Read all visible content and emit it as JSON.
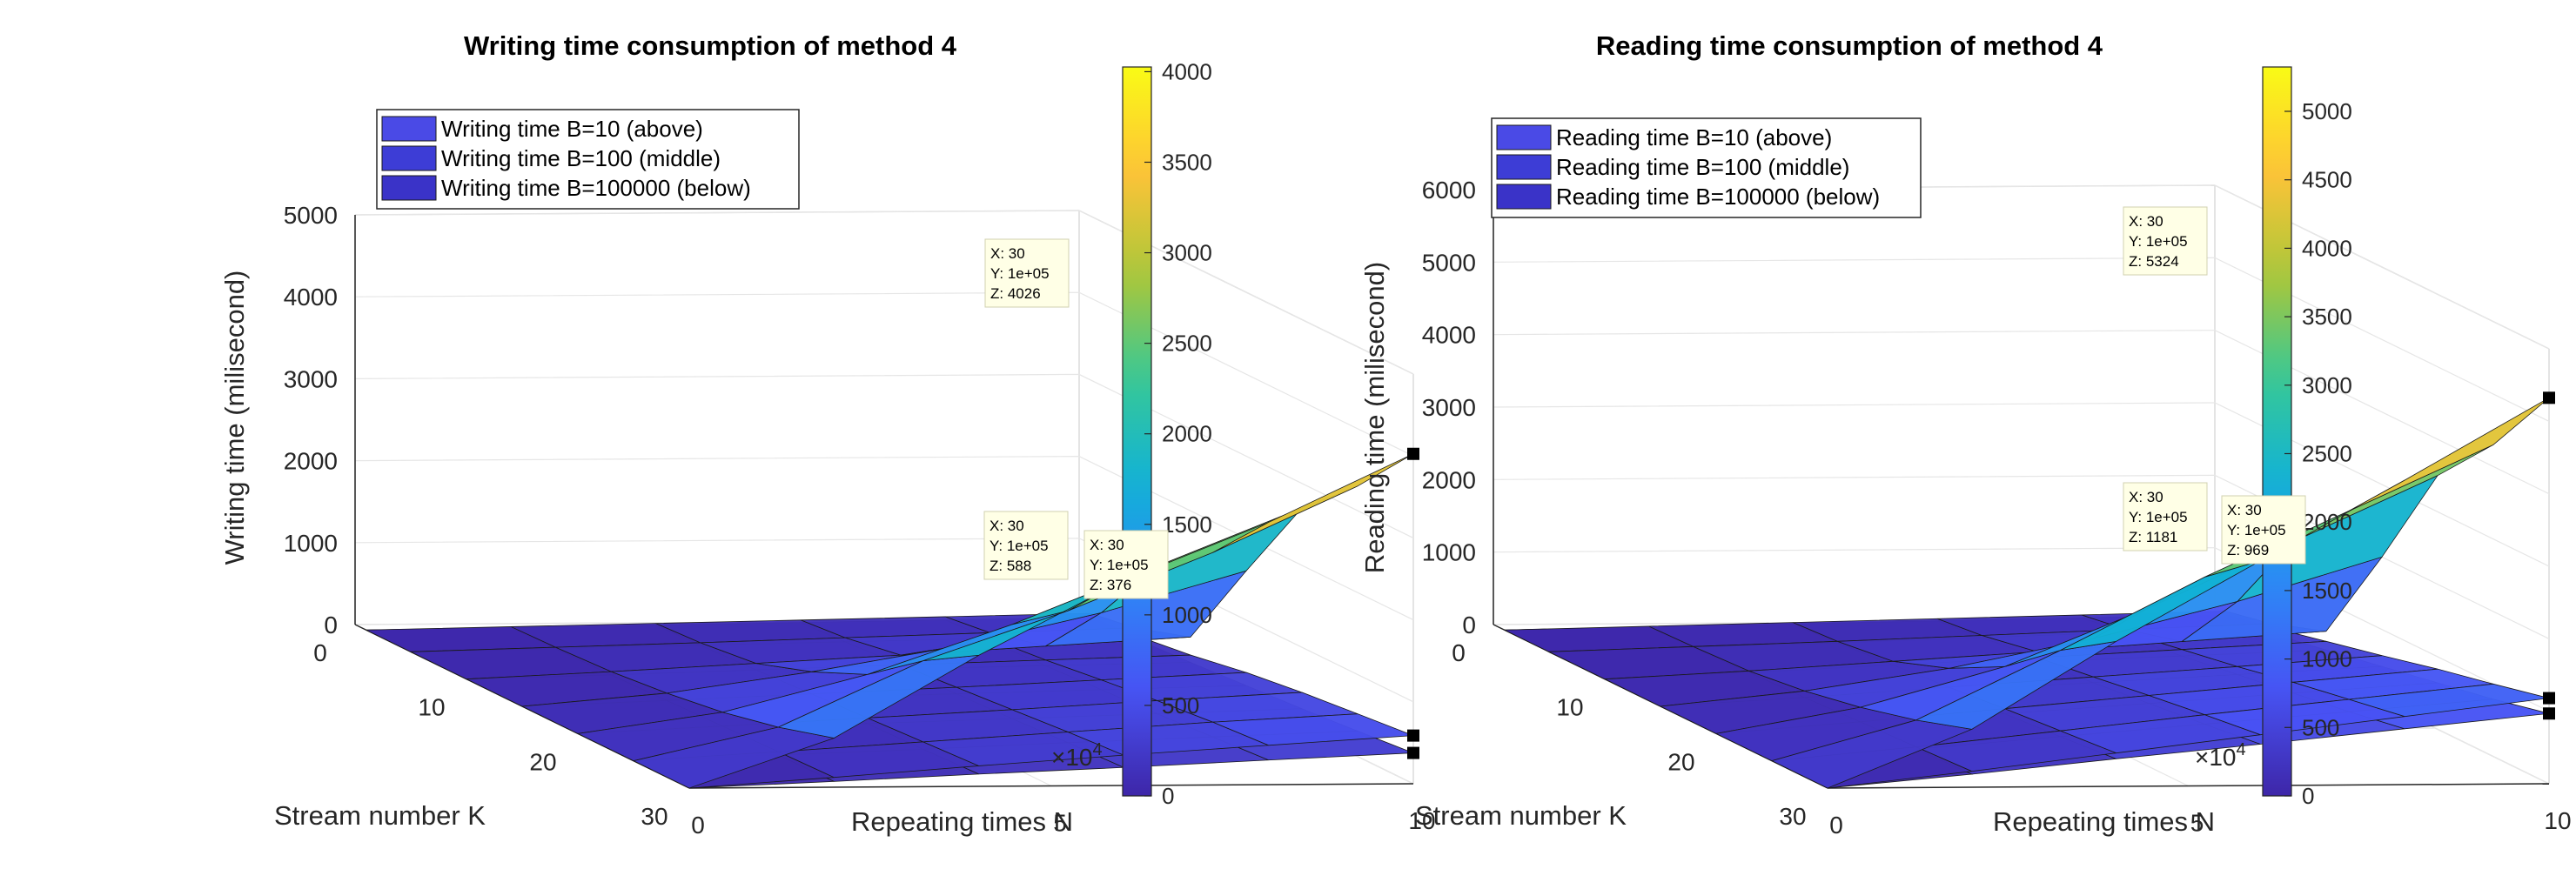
{
  "chart_data": [
    {
      "type": "surface",
      "title": "Writing time consumption of method 4",
      "xlabel": "Repeating times N",
      "ylabel": "Stream number K",
      "zlabel": "Writing time (milisecond)",
      "x_ticks": [
        "0",
        "5",
        "10"
      ],
      "x_exponent": "×10",
      "x_exponent_power": "4",
      "y_ticks": [
        "0",
        "10",
        "20",
        "30"
      ],
      "z_ticks": [
        "0",
        "1000",
        "2000",
        "3000",
        "4000",
        "5000"
      ],
      "zlim": [
        0,
        5000
      ],
      "colorbar_ticks": [
        "0",
        "500",
        "1000",
        "1500",
        "2000",
        "2500",
        "3000",
        "3500",
        "4000"
      ],
      "colorbar_range": [
        0,
        4026
      ],
      "legend": [
        "Writing time B=10 (above)",
        "Writing time B=100 (middle)",
        "Writing time B=100000 (below)"
      ],
      "datatips": [
        {
          "x": "X: 30",
          "y": "Y: 1e+05",
          "z": "Z: 4026",
          "zval": 4026
        },
        {
          "x": "X: 30",
          "y": "Y: 1e+05",
          "z": "Z: 588",
          "zval": 588
        },
        {
          "x": "X: 30",
          "y": "Y: 1e+05",
          "z": "Z: 376",
          "zval": 376
        }
      ],
      "series": [
        {
          "name": "Writing time B=10 (above)",
          "K": [
            1,
            5,
            10,
            15,
            20,
            25,
            30
          ],
          "N": [
            0,
            20000,
            40000,
            60000,
            80000,
            100000
          ],
          "Z": [
            [
              0,
              30,
              60,
              90,
              120,
              150
            ],
            [
              0,
              45,
              90,
              140,
              190,
              240
            ],
            [
              0,
              80,
              170,
              260,
              360,
              460
            ],
            [
              0,
              150,
              400,
              700,
              1100,
              1600
            ],
            [
              0,
              250,
              700,
              1300,
              2000,
              2700
            ],
            [
              0,
              400,
              1200,
              1800,
              2500,
              3300
            ],
            [
              0,
              600,
              1600,
              2500,
              3200,
              4026
            ]
          ]
        },
        {
          "name": "Writing time B=100 (middle)",
          "K": [
            1,
            5,
            10,
            15,
            20,
            25,
            30
          ],
          "N": [
            0,
            20000,
            40000,
            60000,
            80000,
            100000
          ],
          "Z": [
            [
              0,
              20,
              40,
              60,
              80,
              100
            ],
            [
              0,
              30,
              60,
              90,
              120,
              150
            ],
            [
              0,
              40,
              90,
              140,
              190,
              240
            ],
            [
              0,
              60,
              130,
              200,
              280,
              360
            ],
            [
              0,
              80,
              170,
              260,
              360,
              450
            ],
            [
              0,
              100,
              210,
              320,
              430,
              520
            ],
            [
              0,
              120,
              250,
              370,
              480,
              588
            ]
          ]
        },
        {
          "name": "Writing time B=100000 (below)",
          "K": [
            1,
            5,
            10,
            15,
            20,
            25,
            30
          ],
          "N": [
            0,
            20000,
            40000,
            60000,
            80000,
            100000
          ],
          "Z": [
            [
              0,
              15,
              30,
              45,
              60,
              75
            ],
            [
              0,
              20,
              45,
              65,
              90,
              110
            ],
            [
              0,
              30,
              60,
              90,
              120,
              150
            ],
            [
              0,
              40,
              80,
              120,
              160,
              200
            ],
            [
              0,
              50,
              100,
              150,
              200,
              250
            ],
            [
              0,
              60,
              120,
              190,
              250,
              310
            ],
            [
              0,
              70,
              150,
              220,
              300,
              376
            ]
          ]
        }
      ]
    },
    {
      "type": "surface",
      "title": "Reading time consumption of method 4",
      "xlabel": "Repeating times N",
      "ylabel": "Stream number K",
      "zlabel": "Reading time (milisecond)",
      "x_ticks": [
        "0",
        "5",
        "10"
      ],
      "x_exponent": "×10",
      "x_exponent_power": "4",
      "y_ticks": [
        "0",
        "10",
        "20",
        "30"
      ],
      "z_ticks": [
        "0",
        "1000",
        "2000",
        "3000",
        "4000",
        "5000",
        "6000"
      ],
      "zlim": [
        0,
        6000
      ],
      "colorbar_ticks": [
        "0",
        "500",
        "1000",
        "1500",
        "2000",
        "2500",
        "3000",
        "3500",
        "4000",
        "4500",
        "5000"
      ],
      "colorbar_range": [
        0,
        5324
      ],
      "legend": [
        "Reading time B=10 (above)",
        "Reading time B=100 (middle)",
        "Reading time B=100000 (below)"
      ],
      "datatips": [
        {
          "x": "X: 30",
          "y": "Y: 1e+05",
          "z": "Z: 5324",
          "zval": 5324
        },
        {
          "x": "X: 30",
          "y": "Y: 1e+05",
          "z": "Z: 1181",
          "zval": 1181
        },
        {
          "x": "X: 30",
          "y": "Y: 1e+05",
          "z": "Z: 969",
          "zval": 969
        }
      ],
      "series": [
        {
          "name": "Reading time B=10 (above)",
          "K": [
            1,
            5,
            10,
            15,
            20,
            25,
            30
          ],
          "N": [
            0,
            20000,
            40000,
            60000,
            80000,
            100000
          ],
          "Z": [
            [
              0,
              40,
              80,
              120,
              160,
              200
            ],
            [
              0,
              60,
              120,
              190,
              260,
              330
            ],
            [
              0,
              100,
              220,
              340,
              470,
              600
            ],
            [
              0,
              200,
              500,
              900,
              1400,
              2000
            ],
            [
              0,
              350,
              900,
              1700,
              2600,
              3500
            ],
            [
              0,
              550,
              1500,
              2500,
              3400,
              4300
            ],
            [
              0,
              800,
              2000,
              3100,
              4200,
              5324
            ]
          ]
        },
        {
          "name": "Reading time B=100 (middle)",
          "K": [
            1,
            5,
            10,
            15,
            20,
            25,
            30
          ],
          "N": [
            0,
            20000,
            40000,
            60000,
            80000,
            100000
          ],
          "Z": [
            [
              0,
              30,
              60,
              90,
              120,
              150
            ],
            [
              0,
              50,
              100,
              160,
              220,
              280
            ],
            [
              0,
              80,
              170,
              260,
              360,
              460
            ],
            [
              0,
              110,
              240,
              370,
              500,
              640
            ],
            [
              0,
              150,
              320,
              490,
              660,
              830
            ],
            [
              0,
              180,
              390,
              600,
              800,
              1000
            ],
            [
              0,
              220,
              460,
              700,
              940,
              1181
            ]
          ]
        },
        {
          "name": "Reading time B=100000 (below)",
          "K": [
            1,
            5,
            10,
            15,
            20,
            25,
            30
          ],
          "N": [
            0,
            20000,
            40000,
            60000,
            80000,
            100000
          ],
          "Z": [
            [
              0,
              25,
              50,
              75,
              100,
              125
            ],
            [
              0,
              40,
              80,
              120,
              160,
              200
            ],
            [
              0,
              60,
              130,
              200,
              270,
              340
            ],
            [
              0,
              90,
              190,
              290,
              390,
              490
            ],
            [
              0,
              120,
              250,
              380,
              510,
              640
            ],
            [
              0,
              150,
              310,
              470,
              630,
              790
            ],
            [
              0,
              180,
              380,
              570,
              770,
              969
            ]
          ]
        }
      ]
    }
  ]
}
